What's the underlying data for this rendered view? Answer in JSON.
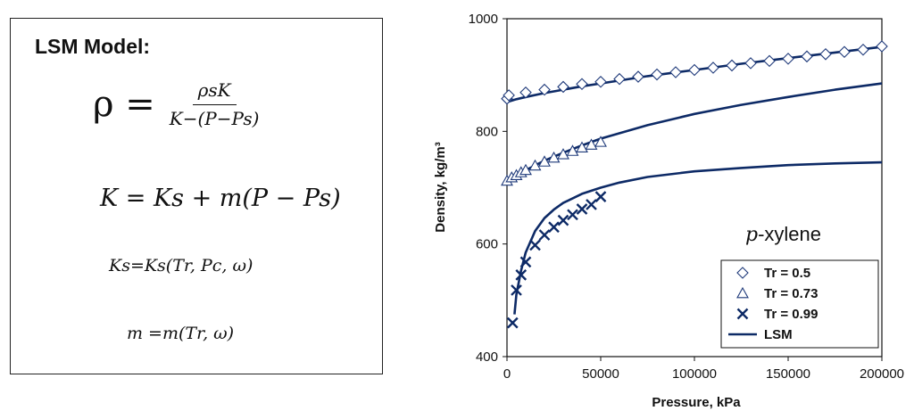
{
  "model": {
    "title": "LSM Model:",
    "eq_rho": {
      "lhs": "ρ =",
      "numerator": "ρsK",
      "denominator": "K−(P−Ps)"
    },
    "eq_k": "K = Ks + m(P − Ps)",
    "eq_ks": "Ks=Ks(Tr, Pc, ω)",
    "eq_m": "m =m(Tr, ω)"
  },
  "chart_data": {
    "type": "scatter",
    "xlabel": "Pressure, kPa",
    "ylabel": "Density, kg/m³",
    "xlim": [
      0,
      200000
    ],
    "ylim": [
      400,
      1000
    ],
    "xticks": [
      0,
      50000,
      100000,
      150000,
      200000
    ],
    "xtick_labels": [
      "0",
      "50000",
      "100000",
      "150000",
      "200000"
    ],
    "yticks": [
      400,
      600,
      800,
      1000
    ],
    "ytick_labels": [
      "400",
      "600",
      "800",
      "1000"
    ],
    "grid": false,
    "legend_position": "bottom-right",
    "annotation": {
      "italic": "p",
      "text": "-xylene"
    },
    "colors": {
      "series": "#1f3a7a",
      "line": "#0d2a66",
      "axis": "#111111"
    },
    "series": [
      {
        "name": "Tr = 0.5",
        "marker": "diamond",
        "x": [
          0,
          1000,
          10000,
          20000,
          30000,
          40000,
          50000,
          60000,
          70000,
          80000,
          90000,
          100000,
          110000,
          120000,
          130000,
          140000,
          150000,
          160000,
          170000,
          180000,
          190000,
          200000
        ],
        "y": [
          858,
          864,
          869,
          874,
          879,
          884,
          888,
          893,
          897,
          901,
          905,
          909,
          913,
          917,
          921,
          925,
          929,
          933,
          937,
          941,
          945,
          951
        ]
      },
      {
        "name": "Tr = 0.73",
        "marker": "triangle",
        "x": [
          0,
          2500,
          5000,
          7500,
          10000,
          15000,
          20000,
          25000,
          30000,
          35000,
          40000,
          45000,
          50000
        ],
        "y": [
          712,
          718,
          722,
          727,
          731,
          739,
          746,
          753,
          759,
          765,
          771,
          776,
          781
        ]
      },
      {
        "name": "Tr = 0.99",
        "marker": "x",
        "x": [
          3000,
          5000,
          7500,
          10000,
          15000,
          20000,
          25000,
          30000,
          35000,
          40000,
          45000,
          50000
        ],
        "y": [
          460,
          518,
          545,
          568,
          598,
          616,
          630,
          642,
          652,
          662,
          670,
          684
        ]
      },
      {
        "name": "LSM",
        "marker": "line",
        "curves": [
          {
            "x": [
              0,
              5000,
              10000,
              20000,
              30000,
              40000,
              50000,
              75000,
              100000,
              125000,
              150000,
              175000,
              200000
            ],
            "y": [
              852,
              857,
              861,
              868,
              874,
              880,
              885,
              898,
              909,
              920,
              930,
              940,
              950
            ]
          },
          {
            "x": [
              0,
              5000,
              10000,
              20000,
              30000,
              40000,
              50000,
              75000,
              100000,
              125000,
              150000,
              175000,
              200000
            ],
            "y": [
              712,
              721,
              731,
              748,
              762,
              775,
              787,
              811,
              831,
              847,
              861,
              874,
              885
            ]
          },
          {
            "x": [
              4000,
              5000,
              7500,
              10000,
              15000,
              20000,
              25000,
              30000,
              40000,
              50000,
              60000,
              75000,
              100000,
              125000,
              150000,
              175000,
              200000
            ],
            "y": [
              475,
              510,
              553,
              585,
              623,
              646,
              661,
              673,
              689,
              700,
              709,
              719,
              729,
              735,
              740,
              743,
              745
            ]
          }
        ]
      }
    ]
  }
}
